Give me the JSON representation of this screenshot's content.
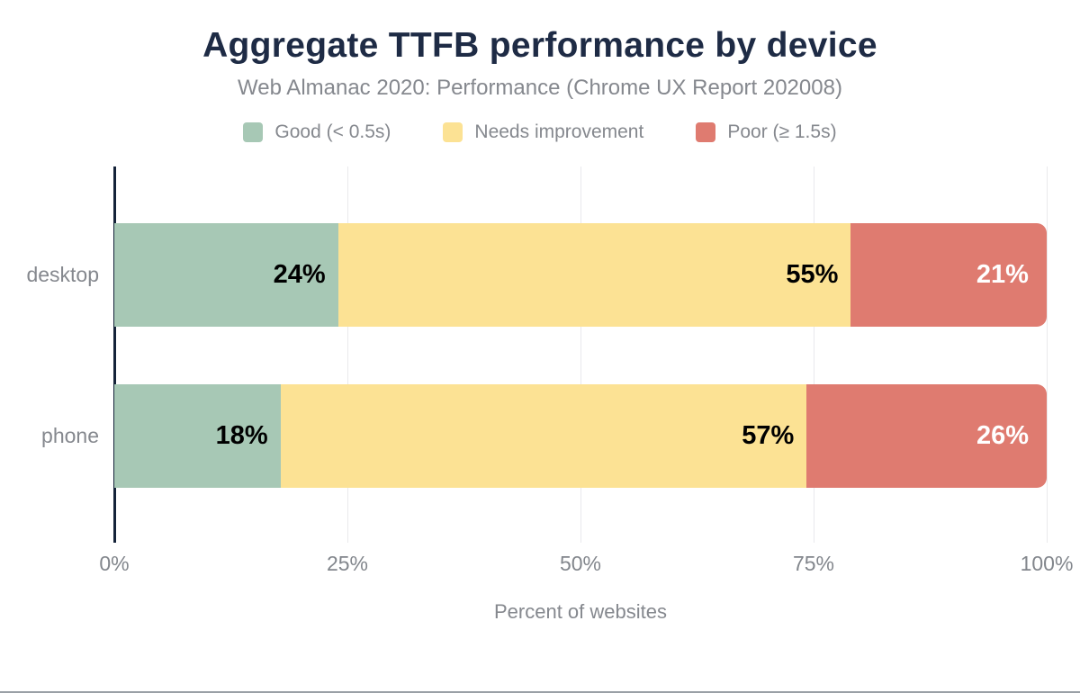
{
  "header": {
    "title": "Aggregate TTFB performance by device",
    "subtitle": "Web Almanac 2020: Performance (Chrome UX Report 202008)"
  },
  "legend": [
    {
      "label": "Good (< 0.5s)",
      "color": "#a7c8b5"
    },
    {
      "label": "Needs improvement",
      "color": "#fce294"
    },
    {
      "label": "Poor (≥ 1.5s)",
      "color": "#df7b70"
    }
  ],
  "chart_data": {
    "type": "bar",
    "orientation": "horizontal-stacked",
    "title": "Aggregate TTFB performance by device",
    "subtitle": "Web Almanac 2020: Performance (Chrome UX Report 202008)",
    "categories": [
      "desktop",
      "phone"
    ],
    "series": [
      {
        "name": "Good (< 0.5s)",
        "color": "#a7c8b5",
        "label_color": "#000000",
        "values": [
          24,
          18
        ]
      },
      {
        "name": "Needs improvement",
        "color": "#fce294",
        "label_color": "#000000",
        "values": [
          55,
          57
        ]
      },
      {
        "name": "Poor (≥ 1.5s)",
        "color": "#df7b70",
        "label_color": "#ffffff",
        "values": [
          21,
          26
        ]
      }
    ],
    "value_suffix": "%",
    "xlabel": "Percent of websites",
    "xlim": [
      0,
      100
    ],
    "x_ticks": [
      {
        "value": 0,
        "label": "0%"
      },
      {
        "value": 25,
        "label": "25%"
      },
      {
        "value": 50,
        "label": "50%"
      },
      {
        "value": 75,
        "label": "75%"
      },
      {
        "value": 100,
        "label": "100%"
      }
    ],
    "grid": "vertical",
    "grid_positions": [
      25,
      50,
      75,
      100
    ],
    "legend_position": "top"
  },
  "colors": {
    "title": "#1e2b45",
    "axis_line": "#152339",
    "muted_text": "#85888e",
    "tick_text": "#82868c",
    "gridline": "#e9e9ec",
    "background": "#ffffff",
    "bottom_rule": "#9aa0a6"
  }
}
